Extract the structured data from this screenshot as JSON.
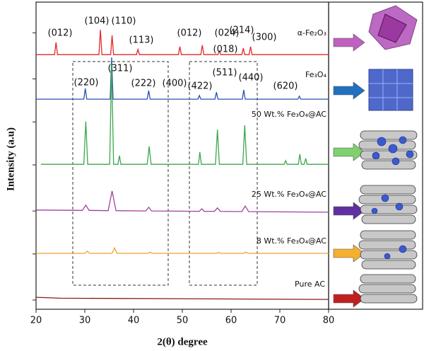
{
  "chart_data": {
    "type": "line",
    "x_label": "2(θ) degree",
    "y_label": "Intensity (a.u)",
    "xlim": [
      20,
      80
    ],
    "xticks": [
      20,
      30,
      40,
      50,
      60,
      70,
      80
    ],
    "ylim": [
      0,
      100
    ],
    "yticks": [
      3,
      18,
      32,
      47,
      61,
      75,
      90
    ],
    "series": [
      {
        "name": "α-Fe₂O₃",
        "color": "#e0282a",
        "x": [
          20,
          23.8,
          24.1,
          24.4,
          32.9,
          33.2,
          33.5,
          35.3,
          35.6,
          35.9,
          40.6,
          40.9,
          41.2,
          49.2,
          49.5,
          49.8,
          53.8,
          54.1,
          54.4,
          57.3,
          57.6,
          57.9,
          62.2,
          62.5,
          62.8,
          63.7,
          64.0,
          64.3,
          80
        ],
        "values": [
          82.9,
          82.9,
          86.9,
          82.9,
          82.9,
          91,
          82.9,
          82.9,
          89.2,
          82.9,
          82.9,
          84.6,
          82.9,
          82.9,
          85.5,
          82.9,
          82.9,
          86,
          82.9,
          82.9,
          84.1,
          82.9,
          82.9,
          85,
          82.9,
          82.9,
          85.5,
          82.9,
          82.9
        ]
      },
      {
        "name": "Fe₃O₄",
        "color": "#2b4fb0",
        "x": [
          20,
          29.8,
          30.1,
          30.4,
          35.2,
          35.5,
          35.8,
          42.8,
          43.1,
          43.4,
          53.2,
          53.5,
          53.8,
          56.7,
          57,
          57.3,
          62.3,
          62.6,
          62.9,
          73.7,
          74,
          74.3,
          80
        ],
        "values": [
          68.4,
          68.4,
          71.9,
          68.4,
          68.4,
          82,
          68.4,
          68.4,
          71.2,
          68.4,
          68.4,
          69.6,
          68.4,
          68.4,
          70.7,
          68.4,
          68.4,
          71.4,
          68.4,
          68.4,
          69.4,
          68.4,
          68.4
        ]
      },
      {
        "name": "50 Wt.% Fe₃O₄@AC",
        "color": "#3aa84a",
        "x": [
          21,
          29.8,
          30.2,
          30.6,
          35.1,
          35.5,
          35.9,
          36.8,
          37.1,
          37.4,
          42.8,
          43.2,
          43.6,
          53.3,
          53.6,
          53.9,
          56.8,
          57.2,
          57.6,
          62.4,
          62.8,
          63.2,
          70.9,
          71.2,
          71.5,
          73.8,
          74.1,
          74.4,
          75.0,
          75.3,
          75.6,
          80
        ],
        "values": [
          47.2,
          47.2,
          61.1,
          47.2,
          47.2,
          80,
          47.2,
          47.2,
          50,
          47.2,
          47.2,
          53,
          47.2,
          47.2,
          51.2,
          47.2,
          47.2,
          58.5,
          47.2,
          47.2,
          59.9,
          47.2,
          47.2,
          48.4,
          47.2,
          47.2,
          50.5,
          47.2,
          47.2,
          49.1,
          47.2,
          47.2
        ]
      },
      {
        "name": "25 Wt.% Fe₃O₄@AC",
        "color": "#a040a0",
        "x": [
          20,
          29.5,
          30.2,
          30.9,
          34.8,
          35.6,
          36.4,
          42.5,
          43.1,
          43.7,
          53.5,
          54,
          54.5,
          56.6,
          57.2,
          57.8,
          62.2,
          62.9,
          63.6,
          80
        ],
        "values": [
          32.3,
          32.2,
          33.9,
          32.2,
          32.1,
          38.5,
          32.1,
          32,
          33.2,
          32,
          31.9,
          32.7,
          31.9,
          31.9,
          33,
          31.9,
          31.8,
          33.6,
          31.8,
          31.6
        ]
      },
      {
        "name": "8 Wt.% Fe₃O₄@AC",
        "color": "#f0a030",
        "x": [
          20,
          30,
          30.5,
          31,
          35.6,
          36.1,
          36.6,
          43,
          43.4,
          43.8,
          57,
          57.4,
          57.8,
          62.6,
          63,
          63.4,
          80
        ],
        "values": [
          18.2,
          18.2,
          18.9,
          18.2,
          18.2,
          20,
          18.2,
          18.2,
          18.6,
          18.2,
          18.2,
          18.5,
          18.2,
          18.2,
          18.6,
          18.2,
          18.2
        ]
      },
      {
        "name": "Pure AC",
        "color": "#8b1a1a",
        "x": [
          20,
          25,
          80
        ],
        "values": [
          3.9,
          3.6,
          3.2
        ]
      }
    ],
    "annotations": [
      "(012)",
      "(104)",
      "(110)",
      "(113)",
      "(012)",
      "(024)",
      "(018)",
      "(214)",
      "(300)",
      "(311)",
      "(220)",
      "(222)",
      "(400)",
      "(422)",
      "(511)",
      "(440)",
      "(620)"
    ]
  }
}
